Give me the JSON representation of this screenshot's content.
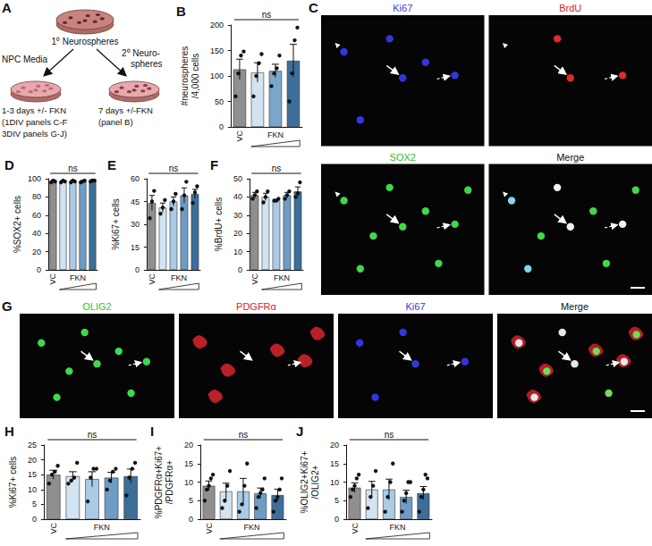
{
  "schematic": {
    "panel": "A",
    "top_dish_label": "1⁰ Neurospheres",
    "left_arrow_label": "NPC Media",
    "right_dish_label": [
      "2⁰ Neuro-",
      "spheres"
    ],
    "left_text": [
      "1-3 days +/- FKN",
      "(1DIV panels C-F",
      "3DIV panels G-J)"
    ],
    "right_text": [
      "7 days +/-FKN",
      "(panel B)"
    ]
  },
  "images": [
    {
      "panel": "C",
      "channels": [
        {
          "label": "Ki67",
          "color": "#3b3bd6"
        },
        {
          "label": "BrdU",
          "color": "#e0202a"
        },
        {
          "label": "SOX2",
          "color": "#2fbf3a"
        },
        {
          "label": "Merge",
          "color": "#111111"
        }
      ]
    },
    {
      "panel": "G",
      "channels": [
        {
          "label": "OLIG2",
          "color": "#2fbf3a"
        },
        {
          "label": "PDGFRα",
          "color": "#e0202a"
        },
        {
          "label": "Ki67",
          "color": "#3b3bd6"
        },
        {
          "label": "Merge",
          "color": "#111111"
        }
      ]
    }
  ],
  "chart_data": [
    {
      "panel": "B",
      "type": "bar",
      "ylabel": "#neurospheres\n/4,000 cells",
      "categories": [
        "VC",
        null,
        null,
        null
      ],
      "group_label": "FKN",
      "annotation": "ns",
      "values": [
        113,
        107,
        110,
        130
      ],
      "errors": [
        20,
        19,
        13,
        32
      ],
      "points": [
        [
          60,
          105,
          140,
          148
        ],
        [
          60,
          100,
          125,
          143
        ],
        [
          80,
          105,
          115,
          140
        ],
        [
          50,
          105,
          170,
          195
        ]
      ],
      "colors": [
        "#8f8f8f",
        "#d2e3f1",
        "#7aa6cc",
        "#3c6e9a"
      ],
      "ylim": [
        0,
        200
      ],
      "yticks": [
        0,
        50,
        100,
        150,
        200
      ]
    },
    {
      "panel": "D",
      "type": "bar",
      "ylabel": "%SOX2+ cells",
      "categories": [
        "VC",
        null,
        null,
        null,
        null
      ],
      "group_label": "FKN",
      "annotation": "ns",
      "values": [
        97,
        97,
        97,
        97,
        98
      ],
      "errors": [
        1,
        1,
        1,
        1,
        1
      ],
      "points": [
        [
          96,
          98,
          97
        ],
        [
          96,
          98,
          97
        ],
        [
          96,
          98,
          97
        ],
        [
          96,
          97,
          98
        ],
        [
          97,
          98,
          98
        ]
      ],
      "colors": [
        "#8f8f8f",
        "#d2e3f1",
        "#a9cbe6",
        "#6e9cc6",
        "#3c6e9a"
      ],
      "ylim": [
        0,
        100
      ],
      "yticks": [
        0,
        20,
        40,
        60,
        80,
        100
      ]
    },
    {
      "panel": "E",
      "type": "bar",
      "ylabel": "%Ki67+ cells",
      "categories": [
        "VC",
        null,
        null,
        null,
        null
      ],
      "group_label": "FKN",
      "annotation": "ns",
      "values": [
        44,
        41,
        45,
        49,
        50
      ],
      "errors": [
        5,
        3,
        3,
        5,
        3
      ],
      "points": [
        [
          34,
          45,
          52
        ],
        [
          37,
          41,
          46
        ],
        [
          40,
          45,
          50
        ],
        [
          40,
          49,
          58
        ],
        [
          44,
          51,
          55
        ]
      ],
      "colors": [
        "#8f8f8f",
        "#d2e3f1",
        "#a9cbe6",
        "#6e9cc6",
        "#3c6e9a"
      ],
      "ylim": [
        0,
        60
      ],
      "yticks": [
        0,
        15,
        30,
        45,
        60
      ]
    },
    {
      "panel": "F",
      "type": "bar",
      "ylabel": "%BrdU+ cells",
      "categories": [
        "VC",
        null,
        null,
        null,
        null
      ],
      "group_label": "FKN",
      "annotation": "ns",
      "values": [
        41,
        40,
        38,
        41,
        43
      ],
      "errors": [
        1.5,
        2,
        0.5,
        1.5,
        2.5
      ],
      "points": [
        [
          39,
          41,
          43
        ],
        [
          37,
          40,
          43
        ],
        [
          38,
          38,
          39
        ],
        [
          39,
          41,
          43
        ],
        [
          40,
          42,
          48
        ]
      ],
      "colors": [
        "#8f8f8f",
        "#d2e3f1",
        "#a9cbe6",
        "#6e9cc6",
        "#3c6e9a"
      ],
      "ylim": [
        0,
        50
      ],
      "yticks": [
        0,
        10,
        20,
        30,
        40,
        50
      ]
    },
    {
      "panel": "H",
      "type": "bar",
      "ylabel": "%Ki67+ cells",
      "categories": [
        "VC",
        null,
        null,
        null,
        null
      ],
      "group_label": "FKN",
      "annotation": "ns",
      "values": [
        15,
        14.5,
        13.5,
        14,
        14.5
      ],
      "errors": [
        1.5,
        1.5,
        2.5,
        1.8,
        2.4
      ],
      "points": [
        [
          12,
          15,
          16,
          18
        ],
        [
          12,
          13,
          14,
          19
        ],
        [
          6,
          14,
          17,
          17
        ],
        [
          10,
          13,
          16,
          17
        ],
        [
          8,
          14,
          17,
          19
        ]
      ],
      "colors": [
        "#8f8f8f",
        "#d2e3f1",
        "#a9cbe6",
        "#6e9cc6",
        "#3c6e9a"
      ],
      "ylim": [
        0,
        25
      ],
      "yticks": [
        0,
        5,
        10,
        15,
        20,
        25
      ]
    },
    {
      "panel": "I",
      "type": "bar",
      "ylabel": "%PDGFRα+Ki67+\n/PDGFRα+",
      "categories": [
        "VC",
        null,
        null,
        null,
        null
      ],
      "group_label": "FKN",
      "annotation": "ns",
      "values": [
        9,
        7.5,
        7.5,
        7,
        6.5
      ],
      "errors": [
        1.3,
        2.2,
        3.5,
        1.4,
        1.6
      ],
      "points": [
        [
          5,
          8,
          9,
          11,
          12
        ],
        [
          3,
          5,
          9,
          13
        ],
        [
          2,
          4,
          9,
          15
        ],
        [
          3,
          6,
          7,
          8,
          11
        ],
        [
          2,
          5,
          6,
          8,
          11
        ]
      ],
      "colors": [
        "#8f8f8f",
        "#d2e3f1",
        "#a9cbe6",
        "#6e9cc6",
        "#3c6e9a"
      ],
      "ylim": [
        0,
        20
      ],
      "yticks": [
        0,
        5,
        10,
        15,
        20
      ]
    },
    {
      "panel": "J",
      "type": "bar",
      "ylabel": "%OLIG2+Ki67+\n/OLIG2+",
      "categories": [
        "VC",
        null,
        null,
        null,
        null
      ],
      "group_label": "FKN",
      "annotation": "ns",
      "values": [
        8.5,
        8,
        8,
        6,
        7
      ],
      "errors": [
        1.3,
        2.2,
        2.8,
        1.8,
        1.8
      ],
      "points": [
        [
          6,
          8,
          9,
          11,
          12
        ],
        [
          3,
          6,
          9,
          13
        ],
        [
          2,
          6,
          10,
          15
        ],
        [
          2,
          5,
          7,
          10,
          10
        ],
        [
          2,
          6,
          8,
          12,
          11
        ]
      ],
      "colors": [
        "#8f8f8f",
        "#d2e3f1",
        "#a9cbe6",
        "#6e9cc6",
        "#3c6e9a"
      ],
      "ylim": [
        0,
        20
      ],
      "yticks": [
        0,
        5,
        10,
        15,
        20
      ]
    }
  ]
}
